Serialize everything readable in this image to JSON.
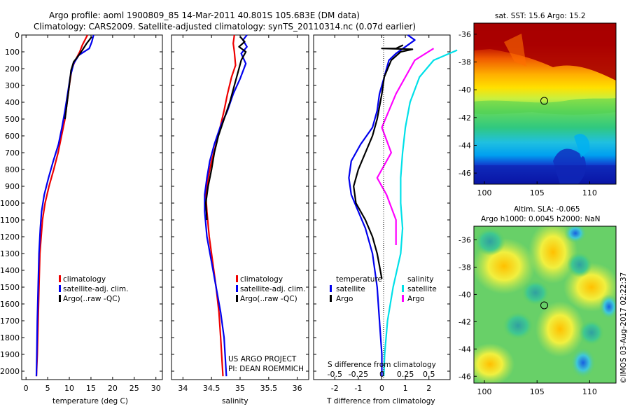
{
  "title": {
    "line1": "Argo profile: aoml 1900809_85 14-Mar-2011 40.801S 105.683E (DM data)",
    "line2": "Climatology: CARS2009. Satellite-adjusted climatology: synTS_20110314.nc (0.07d earlier)"
  },
  "depth_ticks": [
    "0",
    "100",
    "200",
    "300",
    "400",
    "500",
    "600",
    "700",
    "800",
    "900",
    "1000",
    "1100",
    "1200",
    "1300",
    "1400",
    "1500",
    "1600",
    "1700",
    "1800",
    "1900",
    "2000"
  ],
  "colors": {
    "climatology": "#ee0000",
    "satellite": "#0000ee",
    "argo": "#000000",
    "salinity_satellite": "#00e0e8",
    "salinity_argo": "#ff00ff"
  },
  "chart_data": [
    {
      "id": "temperature",
      "type": "line",
      "xlabel": "temperature (deg C)",
      "ylabel": "",
      "xlim": [
        -1,
        31.5
      ],
      "ylim": [
        2050,
        0
      ],
      "xticks": [
        "0",
        "5",
        "10",
        "15",
        "20",
        "25",
        "30"
      ],
      "legend": [
        "climatology",
        "satellite-adj. clim.",
        "Argo(..raw -QC)"
      ],
      "legend_position": "lower-right",
      "series": [
        {
          "name": "climatology",
          "color": "#ee0000",
          "points": [
            [
              14.2,
              0
            ],
            [
              13.0,
              60
            ],
            [
              12.4,
              100
            ],
            [
              11.4,
              150
            ],
            [
              10.6,
              200
            ],
            [
              10.0,
              300
            ],
            [
              9.5,
              400
            ],
            [
              9.0,
              500
            ],
            [
              8.2,
              600
            ],
            [
              7.4,
              700
            ],
            [
              6.4,
              800
            ],
            [
              5.3,
              900
            ],
            [
              4.4,
              1000
            ],
            [
              3.8,
              1100
            ],
            [
              3.5,
              1200
            ],
            [
              3.2,
              1300
            ],
            [
              3.0,
              1500
            ],
            [
              2.8,
              1700
            ],
            [
              2.6,
              1900
            ],
            [
              2.4,
              2030
            ]
          ]
        },
        {
          "name": "satellite-adj. clim.",
          "color": "#0000ee",
          "points": [
            [
              15.6,
              0
            ],
            [
              15.2,
              40
            ],
            [
              14.6,
              80
            ],
            [
              12.2,
              120
            ],
            [
              11.0,
              170
            ],
            [
              10.2,
              250
            ],
            [
              9.6,
              350
            ],
            [
              9.0,
              450
            ],
            [
              8.3,
              550
            ],
            [
              7.5,
              650
            ],
            [
              6.3,
              750
            ],
            [
              5.2,
              850
            ],
            [
              4.2,
              950
            ],
            [
              3.6,
              1050
            ],
            [
              3.3,
              1150
            ],
            [
              3.0,
              1300
            ],
            [
              2.8,
              1500
            ],
            [
              2.6,
              1700
            ],
            [
              2.5,
              1900
            ],
            [
              2.4,
              2030
            ]
          ]
        },
        {
          "name": "Argo(..raw -QC)",
          "color": "#000000",
          "points": [
            [
              15.2,
              10
            ],
            [
              14.0,
              50
            ],
            [
              13.0,
              90
            ],
            [
              12.2,
              120
            ],
            [
              11.0,
              160
            ],
            [
              10.4,
              210
            ],
            [
              10.0,
              300
            ],
            [
              9.5,
              400
            ],
            [
              9.0,
              500
            ]
          ]
        }
      ]
    },
    {
      "id": "salinity",
      "type": "line",
      "xlabel": "salinity",
      "ylabel": "",
      "xlim": [
        33.8,
        36.2
      ],
      "ylim": [
        2050,
        0
      ],
      "xticks": [
        "34",
        "34.5",
        "35",
        "35.5",
        "36"
      ],
      "legend": [
        "climatology",
        "satellite-adj. clim.",
        "Argo(..raw -QC)"
      ],
      "legend_position": "lower-right",
      "annotation": [
        "US ARGO PROJECT",
        "PI: DEAN ROEMMICH"
      ],
      "series": [
        {
          "name": "climatology",
          "color": "#ee0000",
          "points": [
            [
              34.9,
              0
            ],
            [
              34.88,
              50
            ],
            [
              34.9,
              100
            ],
            [
              34.92,
              180
            ],
            [
              34.85,
              250
            ],
            [
              34.78,
              350
            ],
            [
              34.72,
              450
            ],
            [
              34.65,
              550
            ],
            [
              34.58,
              650
            ],
            [
              34.5,
              750
            ],
            [
              34.44,
              850
            ],
            [
              34.4,
              950
            ],
            [
              34.42,
              1050
            ],
            [
              34.46,
              1200
            ],
            [
              34.52,
              1350
            ],
            [
              34.58,
              1500
            ],
            [
              34.63,
              1650
            ],
            [
              34.66,
              1800
            ],
            [
              34.7,
              2030
            ]
          ]
        },
        {
          "name": "satellite-adj. clim.",
          "color": "#0000ee",
          "points": [
            [
              35.12,
              0
            ],
            [
              35.05,
              30
            ],
            [
              35.12,
              70
            ],
            [
              35.02,
              110
            ],
            [
              35.1,
              170
            ],
            [
              35.0,
              260
            ],
            [
              34.88,
              350
            ],
            [
              34.78,
              450
            ],
            [
              34.65,
              550
            ],
            [
              34.55,
              650
            ],
            [
              34.47,
              750
            ],
            [
              34.42,
              850
            ],
            [
              34.38,
              950
            ],
            [
              34.38,
              1050
            ],
            [
              34.42,
              1200
            ],
            [
              34.5,
              1350
            ],
            [
              34.58,
              1500
            ],
            [
              34.66,
              1650
            ],
            [
              34.72,
              1800
            ],
            [
              34.76,
              2030
            ]
          ]
        },
        {
          "name": "Argo(..raw -QC)",
          "color": "#000000",
          "points": [
            [
              35.0,
              10
            ],
            [
              35.08,
              40
            ],
            [
              34.98,
              70
            ],
            [
              35.1,
              100
            ],
            [
              35.02,
              150
            ],
            [
              34.98,
              200
            ],
            [
              34.9,
              300
            ],
            [
              34.82,
              400
            ],
            [
              34.72,
              500
            ],
            [
              34.62,
              600
            ],
            [
              34.55,
              700
            ],
            [
              34.5,
              800
            ],
            [
              34.44,
              900
            ],
            [
              34.4,
              1000
            ],
            [
              34.42,
              1100
            ]
          ]
        }
      ]
    },
    {
      "id": "difference",
      "type": "line",
      "xlabel": "T difference from climatology",
      "x2label": "S difference from climatology",
      "ylabel": "",
      "xlim": [
        -2.9,
        2.9
      ],
      "ylim": [
        2050,
        0
      ],
      "xticks": [
        "-2",
        "-1",
        "0",
        "1",
        "2"
      ],
      "x2ticks": [
        "-0.5",
        "-0.25",
        "0",
        "0.25",
        "0.5"
      ],
      "legend_temperature": [
        "temperature",
        "satellite",
        "Argo"
      ],
      "legend_salinity": [
        "salinity",
        "satellite",
        "Argo"
      ],
      "legend_position": "lower-center",
      "series": [
        {
          "name": "satellite",
          "color": "#0000ee",
          "points": [
            [
              1.1,
              0
            ],
            [
              1.4,
              30
            ],
            [
              1.0,
              70
            ],
            [
              0.6,
              110
            ],
            [
              0.3,
              150
            ],
            [
              0.1,
              250
            ],
            [
              -0.1,
              350
            ],
            [
              -0.2,
              450
            ],
            [
              -0.4,
              550
            ],
            [
              -0.9,
              650
            ],
            [
              -1.3,
              750
            ],
            [
              -1.4,
              850
            ],
            [
              -1.3,
              950
            ],
            [
              -1.0,
              1050
            ],
            [
              -0.7,
              1150
            ],
            [
              -0.4,
              1300
            ],
            [
              -0.2,
              1500
            ],
            [
              -0.1,
              1700
            ],
            [
              0.0,
              1900
            ],
            [
              0.0,
              2030
            ]
          ]
        },
        {
          "name": "Argo",
          "color": "#000000",
          "points": [
            [
              0.9,
              60
            ],
            [
              0.6,
              80
            ],
            [
              0.0,
              80
            ],
            [
              1.3,
              85
            ],
            [
              0.8,
              100
            ],
            [
              0.4,
              150
            ],
            [
              0.1,
              250
            ],
            [
              0.0,
              350
            ],
            [
              -0.2,
              500
            ],
            [
              -0.4,
              600
            ],
            [
              -0.7,
              700
            ],
            [
              -1.0,
              800
            ],
            [
              -1.2,
              900
            ],
            [
              -1.1,
              1000
            ],
            [
              -0.7,
              1100
            ],
            [
              -0.4,
              1200
            ],
            [
              -0.2,
              1300
            ],
            [
              0.0,
              1450
            ]
          ]
        },
        {
          "name": "salinity satellite",
          "color": "#00e0e8",
          "points": [
            [
              0.8,
              90
            ],
            [
              0.55,
              150
            ],
            [
              0.4,
              250
            ],
            [
              0.3,
              400
            ],
            [
              0.25,
              550
            ],
            [
              0.22,
              700
            ],
            [
              0.2,
              850
            ],
            [
              0.2,
              1000
            ],
            [
              0.22,
              1150
            ],
            [
              0.2,
              1300
            ],
            [
              0.12,
              1500
            ],
            [
              0.06,
              1700
            ],
            [
              0.03,
              1900
            ],
            [
              0.02,
              2030
            ]
          ]
        },
        {
          "name": "salinity Argo",
          "color": "#ff00ff",
          "points": [
            [
              0.55,
              80
            ],
            [
              0.35,
              150
            ],
            [
              0.25,
              250
            ],
            [
              0.15,
              350
            ],
            [
              0.0,
              550
            ],
            [
              0.1,
              700
            ],
            [
              -0.05,
              850
            ],
            [
              0.05,
              950
            ],
            [
              0.15,
              1100
            ],
            [
              0.15,
              1250
            ]
          ]
        }
      ]
    },
    {
      "id": "sst_map",
      "type": "heatmap",
      "title": "sat. SST: 15.6  Argo: 15.2",
      "xticks": [
        "100",
        "105",
        "110"
      ],
      "yticks": [
        "-36",
        "-38",
        "-40",
        "-42",
        "-44",
        "-46"
      ],
      "xlim": [
        99,
        112.5
      ],
      "ylim": [
        -46.8,
        -35.2
      ],
      "marker": {
        "lon": 105.683,
        "lat": -40.801
      }
    },
    {
      "id": "sla_map",
      "type": "heatmap",
      "title_line1": "Altim. SLA: -0.065",
      "title_line2": "Argo h1000: 0.0045  h2000: NaN",
      "xticks": [
        "100",
        "105",
        "110"
      ],
      "yticks": [
        "-36",
        "-38",
        "-40",
        "-42",
        "-44",
        "-46"
      ],
      "xlim": [
        99,
        112.5
      ],
      "ylim": [
        -46.5,
        -35
      ],
      "marker": {
        "lon": 105.683,
        "lat": -40.801
      },
      "credit": "©IMOS 03-Aug-2017 02:22:37"
    }
  ]
}
